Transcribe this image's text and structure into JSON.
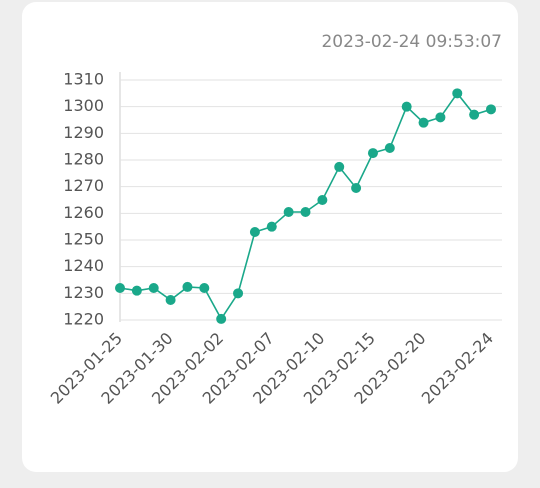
{
  "chart_data": {
    "type": "line",
    "subtitle": "2023-02-24 09:53:07",
    "categories": [
      "2023-01-25",
      null,
      null,
      "2023-01-30",
      null,
      null,
      "2023-02-02",
      null,
      null,
      "2023-02-07",
      null,
      null,
      "2023-02-10",
      null,
      null,
      "2023-02-15",
      null,
      null,
      "2023-02-20",
      null,
      null,
      null,
      "2023-02-24"
    ],
    "values": [
      1232,
      1231,
      1232,
      1227.5,
      1232.4,
      1232,
      1220.4,
      1230,
      1253,
      1255,
      1260.5,
      1260.5,
      1265,
      1277.4,
      1269.5,
      1282.6,
      1284.5,
      1300,
      1294,
      1296,
      1305,
      1297,
      1299
    ],
    "color": "#1aa88a",
    "ylim": [
      1220,
      1310
    ],
    "yticks": [
      1220,
      1230,
      1240,
      1250,
      1260,
      1270,
      1280,
      1290,
      1300,
      1310
    ],
    "grid": true
  }
}
